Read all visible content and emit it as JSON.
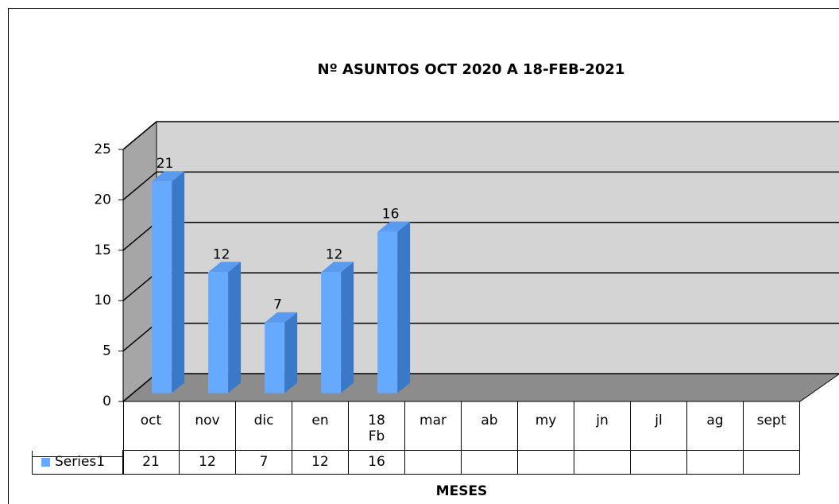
{
  "chart_data": {
    "type": "bar3d",
    "title": "Nº ASUNTOS OCT 2020 A  18-FEB-2021",
    "x_label": "MESES",
    "categories": [
      "oct",
      "nov",
      "dic",
      "en",
      "18\nFb",
      "mar",
      "ab",
      "my",
      "jn",
      "jl",
      "ag",
      "sept"
    ],
    "series": [
      {
        "name": "Series1",
        "color": "#66aaff",
        "values": [
          21,
          12,
          7,
          12,
          16,
          null,
          null,
          null,
          null,
          null,
          null,
          null
        ]
      }
    ],
    "ylim": [
      0,
      25
    ],
    "yticks": [
      0,
      5,
      10,
      15,
      20,
      25
    ],
    "grid": true,
    "data_table": true
  }
}
